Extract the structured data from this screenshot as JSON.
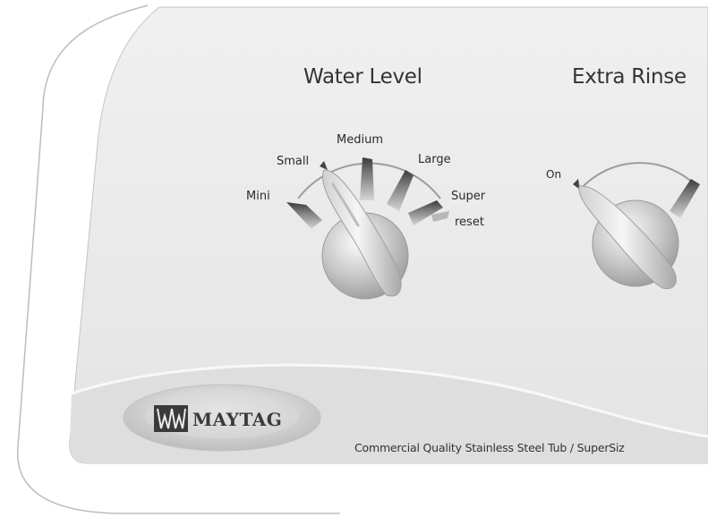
{
  "water_level": {
    "title": "Water Level",
    "settings": [
      "Mini",
      "Small",
      "Medium",
      "Large",
      "Super"
    ],
    "reset_label": "reset"
  },
  "extra_rinse": {
    "title": "Extra Rinse",
    "settings": [
      "On"
    ]
  },
  "brand": {
    "logo_text": "MAYTAG"
  },
  "tagline": "Commercial Quality Stainless Steel Tub / SuperSiz",
  "colors": {
    "panel": "#ececec",
    "outline": "#b8b8b8",
    "text": "#333333"
  }
}
